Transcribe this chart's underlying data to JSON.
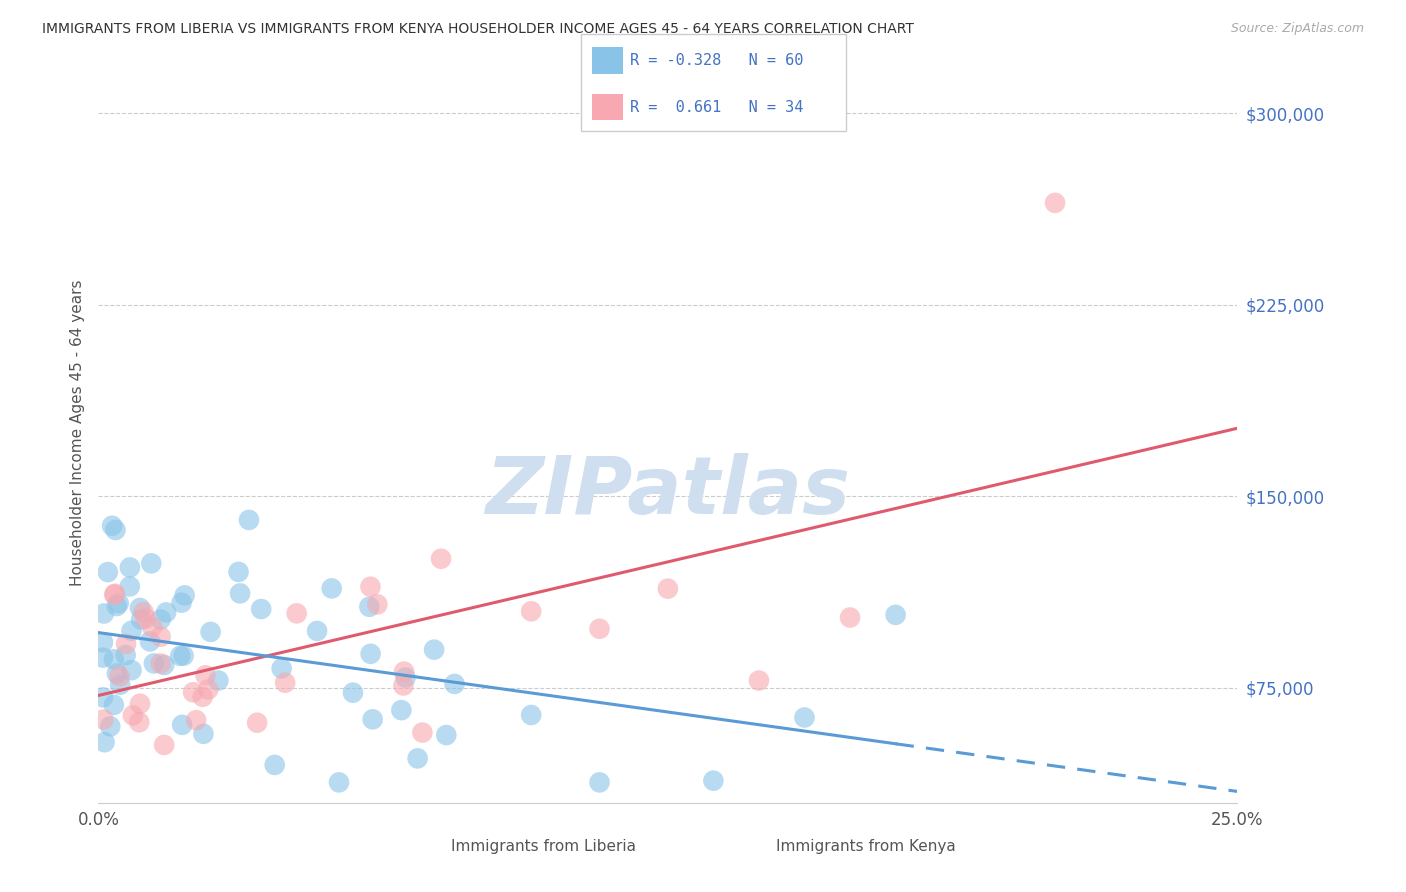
{
  "title": "IMMIGRANTS FROM LIBERIA VS IMMIGRANTS FROM KENYA HOUSEHOLDER INCOME AGES 45 - 64 YEARS CORRELATION CHART",
  "source": "Source: ZipAtlas.com",
  "ylabel": "Householder Income Ages 45 - 64 years",
  "xlim": [
    0.0,
    0.25
  ],
  "ylim": [
    30000,
    320000
  ],
  "yticks": [
    75000,
    150000,
    225000,
    300000
  ],
  "ytick_labels": [
    "$75,000",
    "$150,000",
    "$225,000",
    "$300,000"
  ],
  "xtick_vals": [
    0.0,
    0.05,
    0.1,
    0.15,
    0.2,
    0.25
  ],
  "xtick_labels": [
    "0.0%",
    "",
    "",
    "",
    "",
    "25.0%"
  ],
  "liberia_R": -0.328,
  "liberia_N": 60,
  "kenya_R": 0.661,
  "kenya_N": 34,
  "liberia_color": "#89c4e8",
  "kenya_color": "#f7a8b0",
  "liberia_line_color": "#5b9bd5",
  "kenya_line_color": "#e05a6e",
  "watermark_color": "#d0dff0",
  "background_color": "#ffffff",
  "legend_box_color": "#f0f4f8",
  "legend_text_color": "#4472c4",
  "grid_color": "#cccccc",
  "title_color": "#333333",
  "ylabel_color": "#555555",
  "ytick_color": "#4472c4",
  "xtick_color": "#555555"
}
